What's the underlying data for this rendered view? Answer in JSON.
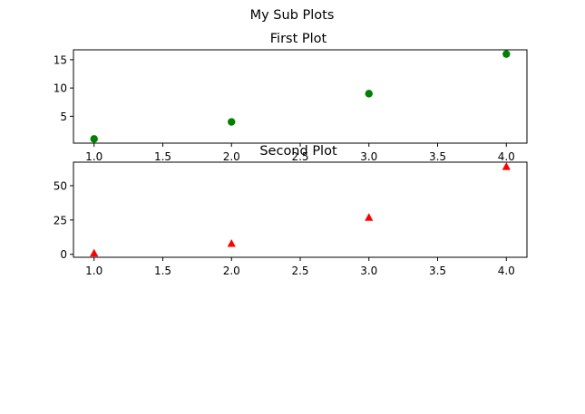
{
  "figure": {
    "suptitle": "My Sub Plots"
  },
  "colors": {
    "series1": "#008000",
    "series2": "#ff0000",
    "axis": "#000000",
    "background": "#ffffff"
  },
  "chart_data": [
    {
      "type": "scatter",
      "title": "First Plot",
      "marker": "circle",
      "color": "#008000",
      "x": [
        1,
        2,
        3,
        4
      ],
      "y": [
        1,
        4,
        9,
        16
      ],
      "xlim": [
        0.85,
        4.15
      ],
      "ylim": [
        0.25,
        16.75
      ],
      "xticks": [
        1.0,
        1.5,
        2.0,
        2.5,
        3.0,
        3.5,
        4.0
      ],
      "xtick_labels": [
        "1.0",
        "1.5",
        "2.0",
        "2.5",
        "3.0",
        "3.5",
        "4.0"
      ],
      "yticks": [
        5,
        10,
        15
      ],
      "ytick_labels": [
        "5",
        "10",
        "15"
      ],
      "xlabel": "",
      "ylabel": ""
    },
    {
      "type": "scatter",
      "title": "Second Plot",
      "marker": "triangle",
      "color": "#ff0000",
      "x": [
        1,
        2,
        3,
        4
      ],
      "y": [
        1,
        8,
        27,
        64
      ],
      "xlim": [
        0.85,
        4.15
      ],
      "ylim": [
        -2.15,
        67.15
      ],
      "xticks": [
        1.0,
        1.5,
        2.0,
        2.5,
        3.0,
        3.5,
        4.0
      ],
      "xtick_labels": [
        "1.0",
        "1.5",
        "2.0",
        "2.5",
        "3.0",
        "3.5",
        "4.0"
      ],
      "yticks": [
        0,
        25,
        50
      ],
      "ytick_labels": [
        "0",
        "25",
        "50"
      ],
      "xlabel": "",
      "ylabel": ""
    }
  ]
}
